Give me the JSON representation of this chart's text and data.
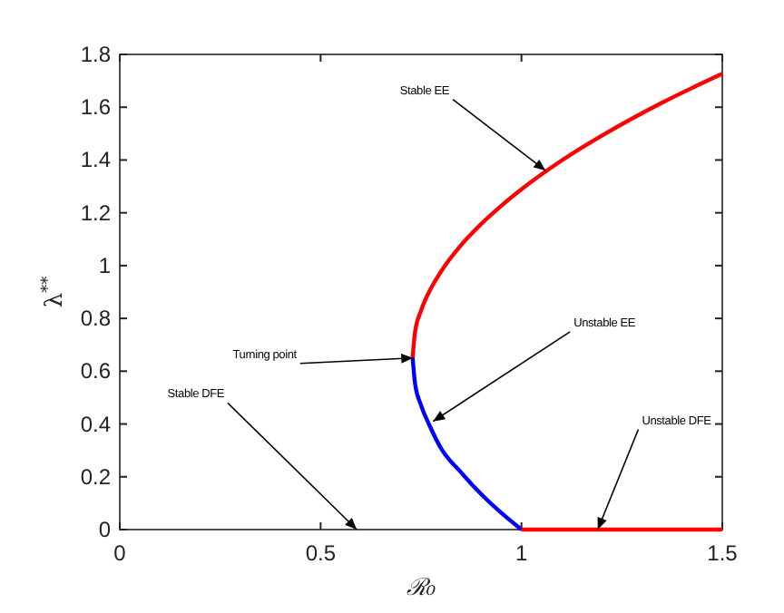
{
  "chart_data": {
    "type": "line",
    "xlabel": "ℛ₀",
    "ylabel": "λ$^{**}$",
    "xlim": [
      0,
      1.5
    ],
    "ylim": [
      0,
      1.8
    ],
    "xticks": [
      0,
      0.5,
      1,
      1.5
    ],
    "yticks": [
      0,
      0.2,
      0.4,
      0.6,
      0.8,
      1,
      1.2,
      1.4,
      1.6,
      1.8
    ],
    "grid": false,
    "marker": "none",
    "line_style": "solid",
    "series": [
      {
        "color": "#ff0000",
        "x": [
          0.729,
          0.735,
          0.75,
          0.771,
          0.8,
          0.85,
          0.9,
          0.95,
          1.0,
          1.1,
          1.2,
          1.35,
          1.5
        ],
        "values": [
          0.652,
          0.747,
          0.829,
          0.903,
          0.978,
          1.078,
          1.158,
          1.227,
          1.289,
          1.398,
          1.492,
          1.617,
          1.727
        ]
      },
      {
        "color": "#0000ff",
        "x": [
          0.729,
          0.735,
          0.75,
          0.771,
          0.8,
          0.85,
          0.9,
          0.95,
          1.0
        ],
        "values": [
          0.652,
          0.555,
          0.471,
          0.395,
          0.307,
          0.216,
          0.134,
          0.063,
          0
        ]
      },
      {
        "color": "#ff0000",
        "x": [
          1.0,
          1.5
        ],
        "values": [
          0,
          0
        ]
      }
    ],
    "annotations": [
      {
        "text": "Stable EE",
        "x": 1.06,
        "y": 1.36
      },
      {
        "text": "Turning point",
        "x": 0.73,
        "y": 0.65
      },
      {
        "text": "Unstable EE",
        "x": 0.78,
        "y": 0.41
      },
      "Stable DFE",
      {
        "text": "Unstable DFE",
        "x": 1.19,
        "y": 0
      }
    ]
  }
}
